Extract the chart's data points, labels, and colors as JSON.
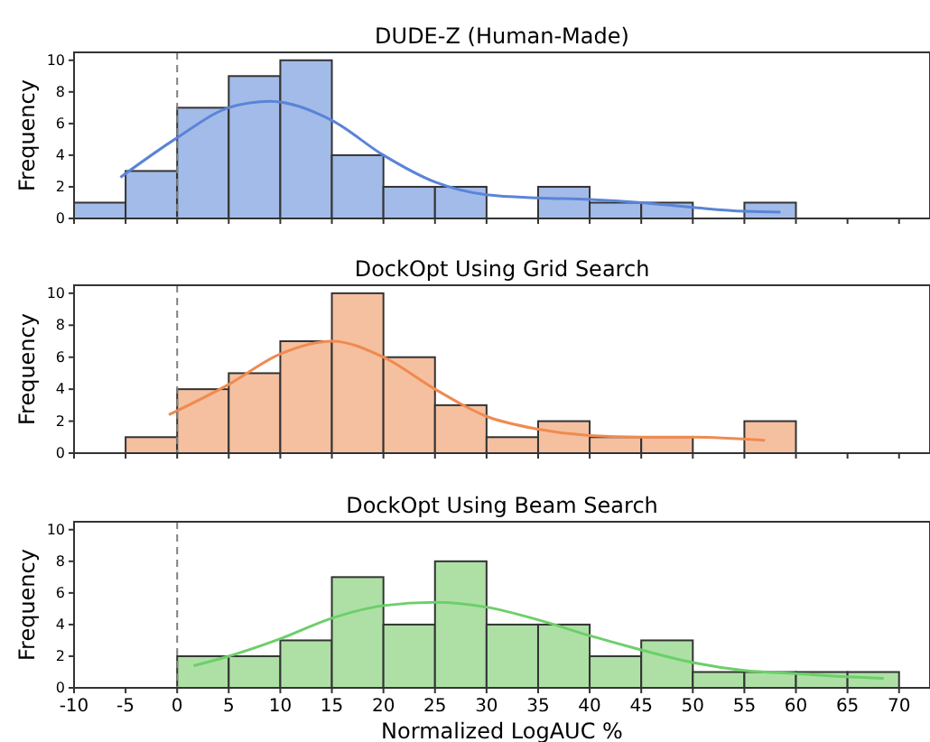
{
  "chart_data": [
    {
      "type": "histogram",
      "title": "DUDE-Z (Human-Made)",
      "ylabel": "Frequency",
      "bins": [
        -10,
        -5,
        0,
        5,
        10,
        15,
        20,
        25,
        30,
        35,
        40,
        45,
        50,
        55,
        60
      ],
      "values": [
        1,
        3,
        7,
        9,
        10,
        4,
        2,
        2,
        0,
        2,
        1,
        1,
        0,
        1
      ],
      "color": "#a3bbe8",
      "xlim": [
        -10,
        73
      ],
      "xticks": [
        -10,
        -5,
        0,
        5,
        10,
        15,
        20,
        25,
        30,
        35,
        40,
        45,
        50,
        55,
        60,
        65,
        70
      ],
      "ylim": [
        0,
        10.5
      ],
      "yticks": [
        0,
        2,
        4,
        6,
        8,
        10
      ],
      "tick_labels": "y",
      "ref_lines": [
        {
          "axis": "x",
          "value": 0,
          "color": "#808080",
          "line_style": "dashed"
        }
      ],
      "series": [
        {
          "type": "line",
          "color": "#5a84d8",
          "x": [
            -5.5,
            0,
            5,
            9,
            15,
            20,
            25,
            30,
            35,
            40,
            45,
            50,
            55,
            58.5
          ],
          "values": [
            2.6,
            5.1,
            7.0,
            7.4,
            6.2,
            4.0,
            2.3,
            1.5,
            1.3,
            1.2,
            1.0,
            0.7,
            0.45,
            0.4
          ]
        }
      ]
    },
    {
      "type": "histogram",
      "title": "DockOpt Using Grid Search",
      "ylabel": "Frequency",
      "bins": [
        -5,
        0,
        5,
        10,
        15,
        20,
        25,
        30,
        35,
        40,
        45,
        50,
        55,
        60
      ],
      "values": [
        1,
        4,
        5,
        7,
        10,
        6,
        3,
        1,
        2,
        1,
        1,
        0,
        2
      ],
      "color": "#f5c0a0",
      "xlim": [
        -10,
        73
      ],
      "xticks": [
        -10,
        -5,
        0,
        5,
        10,
        15,
        20,
        25,
        30,
        35,
        40,
        45,
        50,
        55,
        60,
        65,
        70
      ],
      "ylim": [
        0,
        10.5
      ],
      "yticks": [
        0,
        2,
        4,
        6,
        8,
        10
      ],
      "tick_labels": "y",
      "ref_lines": [
        {
          "axis": "x",
          "value": 0,
          "color": "#808080",
          "line_style": "dashed"
        }
      ],
      "series": [
        {
          "type": "line",
          "color": "#f08a50",
          "x": [
            -0.8,
            5,
            10,
            15,
            20,
            25,
            30,
            35,
            40,
            45,
            50,
            57
          ],
          "values": [
            2.4,
            4.3,
            6.2,
            7.0,
            6.0,
            4.0,
            2.3,
            1.5,
            1.1,
            1.0,
            1.0,
            0.8
          ]
        }
      ]
    },
    {
      "type": "histogram",
      "title": "DockOpt Using Beam Search",
      "ylabel": "Frequency",
      "xlabel": "Normalized LogAUC %",
      "bins": [
        0,
        5,
        10,
        15,
        20,
        25,
        30,
        35,
        40,
        45,
        50,
        55,
        60,
        65,
        70
      ],
      "values": [
        2,
        2,
        3,
        7,
        4,
        8,
        4,
        4,
        2,
        3,
        1,
        1,
        1,
        1
      ],
      "color": "#aee0a6",
      "xlim": [
        -10,
        73
      ],
      "xticks": [
        -10,
        -5,
        0,
        5,
        10,
        15,
        20,
        25,
        30,
        35,
        40,
        45,
        50,
        55,
        60,
        65,
        70
      ],
      "ylim": [
        0,
        10.5
      ],
      "yticks": [
        0,
        2,
        4,
        6,
        8,
        10
      ],
      "ref_lines": [
        {
          "axis": "x",
          "value": 0,
          "color": "#808080",
          "line_style": "dashed"
        }
      ],
      "series": [
        {
          "type": "line",
          "color": "#6ccf6a",
          "x": [
            1.6,
            5,
            10,
            15,
            20,
            25,
            30,
            35,
            40,
            45,
            50,
            55,
            60,
            65,
            68.5
          ],
          "values": [
            1.4,
            2.0,
            3.1,
            4.4,
            5.2,
            5.4,
            5.1,
            4.3,
            3.3,
            2.4,
            1.6,
            1.1,
            0.9,
            0.7,
            0.6
          ]
        }
      ]
    }
  ]
}
